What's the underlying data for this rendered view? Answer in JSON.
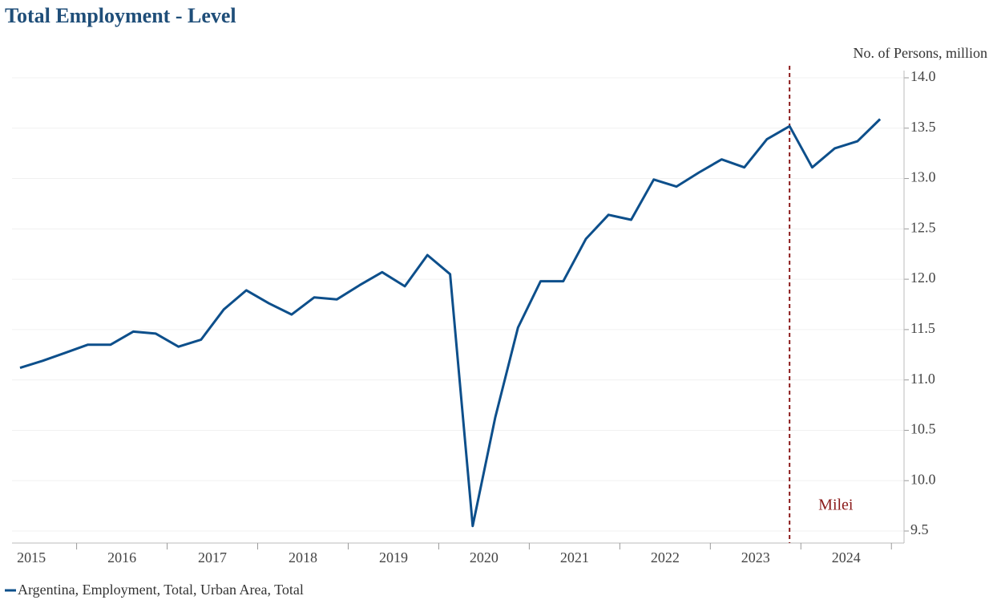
{
  "chart_data": {
    "type": "line",
    "title": "Total Employment - Level",
    "y_axis_label": "No. of Persons, million",
    "categories": [
      "2015",
      null,
      null,
      null,
      "2016",
      null,
      null,
      null,
      "2017",
      null,
      null,
      null,
      "2018",
      null,
      null,
      null,
      "2019",
      null,
      null,
      null,
      "2020",
      null,
      null,
      null,
      "2021",
      null,
      null,
      null,
      "2022",
      null,
      null,
      null,
      "2023",
      null,
      null,
      null,
      "2024",
      null,
      null
    ],
    "series": [
      {
        "name": "Argentina, Employment, Total, Urban Area, Total",
        "color": "#0d4f8b",
        "values": [
          11.12,
          11.19,
          11.27,
          11.35,
          11.35,
          11.48,
          11.46,
          11.33,
          11.4,
          11.7,
          11.89,
          11.76,
          11.65,
          11.82,
          11.8,
          11.94,
          12.07,
          11.93,
          12.24,
          12.05,
          9.55,
          10.63,
          11.52,
          11.98,
          11.98,
          12.4,
          12.64,
          12.59,
          12.99,
          12.92,
          13.06,
          13.19,
          13.11,
          13.39,
          13.52,
          13.11,
          13.3,
          13.37,
          13.59
        ]
      }
    ],
    "ylim": [
      9.5,
      14.0
    ],
    "yticks": [
      {
        "value": 9.5,
        "label": "9.5"
      },
      {
        "value": 10,
        "label": "10.0"
      },
      {
        "value": 10.5,
        "label": "10.5"
      },
      {
        "value": 11,
        "label": "11.0"
      },
      {
        "value": 11.5,
        "label": "11.5"
      },
      {
        "value": 12,
        "label": "12.0"
      },
      {
        "value": 12.5,
        "label": "12.5"
      },
      {
        "value": 13,
        "label": "13.0"
      },
      {
        "value": 13.5,
        "label": "13.5"
      },
      {
        "value": 14,
        "label": "14.0"
      }
    ],
    "grid": true,
    "vline": {
      "label": "Milei",
      "index": 34,
      "color": "#8b1a1a"
    }
  }
}
